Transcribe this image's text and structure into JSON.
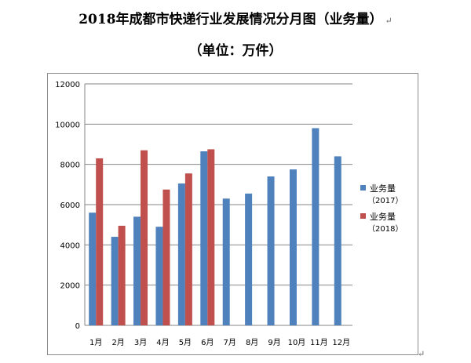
{
  "title_line1": "2018年成都市快递行业发展情况分月图（业务量）",
  "title_line2": "（单位：万件）",
  "chart_data": {
    "type": "bar",
    "categories": [
      "1月",
      "2月",
      "3月",
      "4月",
      "5月",
      "6月",
      "7月",
      "8月",
      "9月",
      "10月",
      "11月",
      "12月"
    ],
    "series": [
      {
        "name": "业务量（2017）",
        "legend_line1": "业务量",
        "legend_line2": "（2017）",
        "color": "#4F81BD",
        "values": [
          5600,
          4400,
          5400,
          4900,
          7050,
          8650,
          6300,
          6550,
          7400,
          7750,
          9800,
          8400
        ]
      },
      {
        "name": "业务量（2018）",
        "legend_line1": "业务量",
        "legend_line2": "（2018）",
        "color": "#C0504D",
        "values": [
          8300,
          4950,
          8700,
          6750,
          7550,
          8750,
          null,
          null,
          null,
          null,
          null,
          null
        ]
      }
    ],
    "ylim": [
      0,
      12000
    ],
    "yticks": [
      0,
      2000,
      4000,
      6000,
      8000,
      10000,
      12000
    ],
    "grid": true,
    "legend_position": "right"
  }
}
